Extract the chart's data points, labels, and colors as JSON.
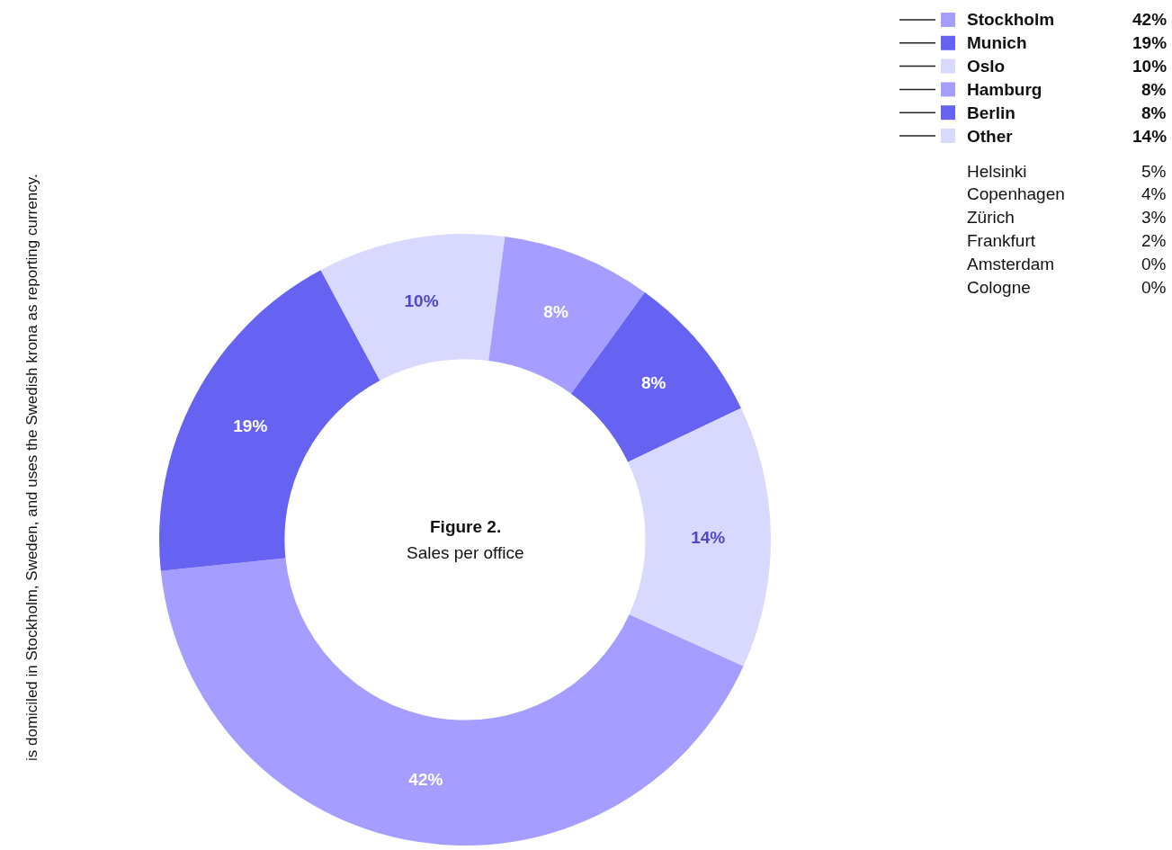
{
  "chart_data": {
    "type": "donut",
    "title": "Figure 2.",
    "subtitle": "Sales per office",
    "categories": [
      "Stockholm",
      "Munich",
      "Oslo",
      "Hamburg",
      "Berlin",
      "Other"
    ],
    "values": [
      42,
      19,
      10,
      8,
      8,
      14
    ],
    "colors": [
      "#a59dff",
      "#6663f2",
      "#d9d8ff",
      "#a59dff",
      "#6663f2",
      "#d9d8ff"
    ],
    "value_labels": [
      "42%",
      "19%",
      "10%",
      "8%",
      "8%",
      "14%"
    ],
    "legend": "right",
    "annotations": [
      "is domiciled in Stockholm, Sweden, and uses the Swedish krona as reporting currency.",
      "Helsinki 5%",
      "Copenhagen 4%",
      "Zürich 3%",
      "Frankfurt 2%",
      "Amsterdam 0%",
      "Cologne 0%"
    ]
  }
}
